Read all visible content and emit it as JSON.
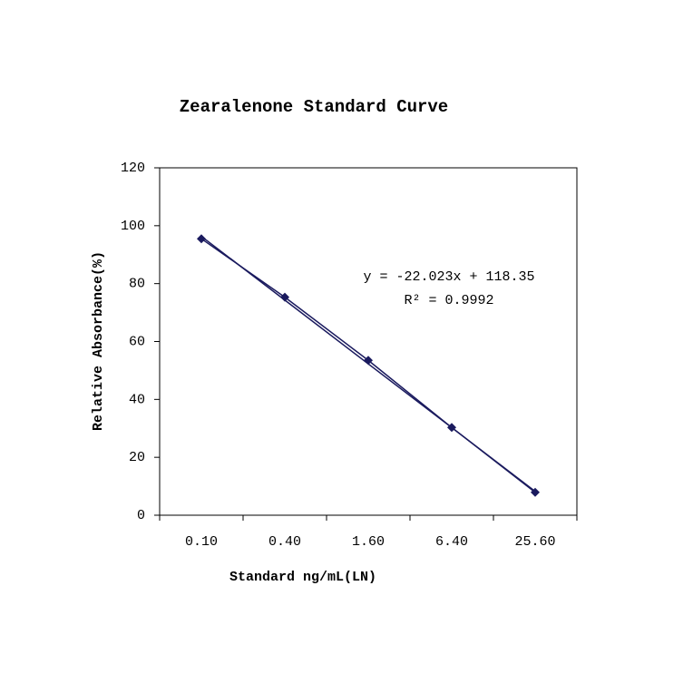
{
  "chart_data": {
    "type": "line",
    "title": "Zearalenone Standard Curve",
    "x_label": "Standard ng/mL(LN)",
    "y_label": "Relative Absorbance(%)",
    "categories": [
      "0.10",
      "0.40",
      "1.60",
      "6.40",
      "25.60"
    ],
    "series": [
      {
        "color": "#1a1a5e",
        "values": [
          95.5,
          75.3,
          53.5,
          30.3,
          7.9
        ]
      }
    ],
    "trendline": {
      "slope": -22.023,
      "intercept": 118.35,
      "color": "#1a1a5e"
    },
    "annotations": [
      "y = -22.023x + 118.35",
      "R² = 0.9992"
    ],
    "ylim": [
      0,
      120
    ],
    "yticks": [
      0,
      20,
      40,
      60,
      80,
      100,
      120
    ],
    "grid": false
  }
}
